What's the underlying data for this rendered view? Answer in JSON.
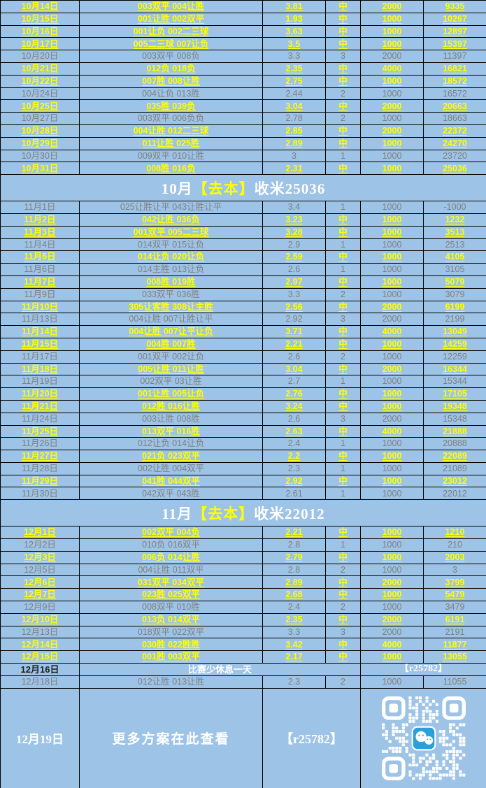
{
  "colors": {
    "background_blue": "#9DC3E6",
    "win_text": "#FFFF00",
    "loss_text": "#808080",
    "summary_text": "#FFFFFF",
    "grid_border": "#000000",
    "wechat_blue": "#2B9FD9"
  },
  "icons": {
    "qr": "wechat-qr-code",
    "qr_center": "wechat-icon"
  },
  "rows": [
    {
      "type": "bet",
      "win": true,
      "date": "10月14日",
      "pick": "003双平 004让胜",
      "odds": "3.81",
      "result": "中",
      "stake": "2000",
      "profit": "9335"
    },
    {
      "type": "bet",
      "win": true,
      "date": "10月15日",
      "pick": "001让胜 002双平",
      "odds": "1.93",
      "result": "中",
      "stake": "1000",
      "profit": "10267"
    },
    {
      "type": "bet",
      "win": true,
      "date": "10月16日",
      "pick": "001让负 002二三球",
      "odds": "3.63",
      "result": "中",
      "stake": "1000",
      "profit": "12897"
    },
    {
      "type": "bet",
      "win": true,
      "date": "10月17日",
      "pick": "005二三球 007让负",
      "odds": "3.5",
      "result": "中",
      "stake": "1000",
      "profit": "15397"
    },
    {
      "type": "bet",
      "win": false,
      "date": "10月20日",
      "pick": "003双平 008负",
      "odds": "3.3",
      "result": "3",
      "stake": "2000",
      "profit": "11397"
    },
    {
      "type": "bet",
      "win": true,
      "date": "10月21日",
      "pick": "012负 018负",
      "odds": "2.35",
      "result": "中",
      "stake": "4000",
      "profit": "16821"
    },
    {
      "type": "bet",
      "win": true,
      "date": "10月22日",
      "pick": "007胜 008让胜",
      "odds": "2.75",
      "result": "中",
      "stake": "1000",
      "profit": "18572"
    },
    {
      "type": "bet",
      "win": false,
      "date": "10月24日",
      "pick": "004让负 013胜",
      "odds": "2.44",
      "result": "2",
      "stake": "1000",
      "profit": "16572"
    },
    {
      "type": "bet",
      "win": true,
      "date": "10月25日",
      "pick": "035胜 039负",
      "odds": "3.04",
      "result": "中",
      "stake": "2000",
      "profit": "20663"
    },
    {
      "type": "bet",
      "win": false,
      "date": "10月27日",
      "pick": "003双平 006负负",
      "odds": "2.78",
      "result": "2",
      "stake": "1000",
      "profit": "18663"
    },
    {
      "type": "bet",
      "win": true,
      "date": "10月28日",
      "pick": "004让胜 012二三球",
      "odds": "2.85",
      "result": "中",
      "stake": "2000",
      "profit": "22372"
    },
    {
      "type": "bet",
      "win": true,
      "date": "10月29日",
      "pick": "011让胜 025胜",
      "odds": "2.89",
      "result": "中",
      "stake": "1000",
      "profit": "24270"
    },
    {
      "type": "bet",
      "win": false,
      "date": "10月30日",
      "pick": "009双平 010让胜",
      "odds": "3",
      "result": "1",
      "stake": "1000",
      "profit": "23720"
    },
    {
      "type": "bet",
      "win": true,
      "date": "10月31日",
      "pick": "008胜 016负",
      "odds": "2.31",
      "result": "中",
      "stake": "1000",
      "profit": "25036"
    },
    {
      "type": "summary",
      "pre": "10月",
      "mid": "【去本】",
      "post": "收米25036"
    },
    {
      "type": "bet",
      "win": false,
      "date": "11月1日",
      "pick": "025让胜让平 043让胜让平",
      "odds": "3.4",
      "result": "1",
      "stake": "1000",
      "profit": "-1000"
    },
    {
      "type": "bet",
      "win": true,
      "date": "11月2日",
      "pick": "042让胜 036负",
      "odds": "3.23",
      "result": "中",
      "stake": "1000",
      "profit": "1232"
    },
    {
      "type": "bet",
      "win": true,
      "date": "11月3日",
      "pick": "001双平 005二三球",
      "odds": "3.28",
      "result": "中",
      "stake": "1000",
      "profit": "3513"
    },
    {
      "type": "bet",
      "win": false,
      "date": "11月4日",
      "pick": "014双平 015让负",
      "odds": "2.9",
      "result": "1",
      "stake": "1000",
      "profit": "2513"
    },
    {
      "type": "bet",
      "win": true,
      "date": "11月5日",
      "pick": "014让负 020让负",
      "odds": "2.59",
      "result": "中",
      "stake": "1000",
      "profit": "4105"
    },
    {
      "type": "bet",
      "win": false,
      "date": "11月6日",
      "pick": "014主胜 013让负",
      "odds": "2.6",
      "result": "1",
      "stake": "1000",
      "profit": "3105"
    },
    {
      "type": "bet",
      "win": true,
      "date": "11月7日",
      "pick": "008胜 019胜",
      "odds": "2.97",
      "result": "中",
      "stake": "1000",
      "profit": "5079"
    },
    {
      "type": "bet",
      "win": false,
      "date": "11月9日",
      "pick": "033双平 036胜",
      "odds": "3.3",
      "result": "2",
      "stake": "1000",
      "profit": "3079"
    },
    {
      "type": "bet",
      "win": true,
      "date": "11月10日",
      "pick": "305让客胜 308让主胜",
      "odds": "2.56",
      "result": "中",
      "stake": "2000",
      "profit": "6199"
    },
    {
      "type": "bet",
      "win": false,
      "date": "11月13日",
      "pick": "004让胜 007让胜让平",
      "odds": "2.92",
      "result": "3",
      "stake": "2000",
      "profit": "2199"
    },
    {
      "type": "bet",
      "win": true,
      "date": "11月14日",
      "pick": "004让胜 007让平让负",
      "odds": "3.71",
      "result": "中",
      "stake": "4000",
      "profit": "13049"
    },
    {
      "type": "bet",
      "win": true,
      "date": "11月15日",
      "pick": "004胜 007胜",
      "odds": "2.21",
      "result": "中",
      "stake": "1000",
      "profit": "14259"
    },
    {
      "type": "bet",
      "win": false,
      "date": "11月17日",
      "pick": "001双平 002让负",
      "odds": "2.6",
      "result": "2",
      "stake": "1000",
      "profit": "12259"
    },
    {
      "type": "bet",
      "win": true,
      "date": "11月18日",
      "pick": "005让胜 011让胜",
      "odds": "3.04",
      "result": "中",
      "stake": "2000",
      "profit": "16344"
    },
    {
      "type": "bet",
      "win": false,
      "date": "11月19日",
      "pick": "002双平 03让胜",
      "odds": "2.7",
      "result": "1",
      "stake": "1000",
      "profit": "15344"
    },
    {
      "type": "bet",
      "win": true,
      "date": "11月20日",
      "pick": "001让胜 005让负",
      "odds": "2.76",
      "result": "中",
      "stake": "1000",
      "profit": "17105"
    },
    {
      "type": "bet",
      "win": true,
      "date": "11月21日",
      "pick": "012胜 016让胜",
      "odds": "3.24",
      "result": "中",
      "stake": "1000",
      "profit": "19348"
    },
    {
      "type": "bet",
      "win": false,
      "date": "11月24日",
      "pick": "003让胜 008胜",
      "odds": "2.6",
      "result": "3",
      "stake": "2000",
      "profit": "15348"
    },
    {
      "type": "bet",
      "win": true,
      "date": "11月25日",
      "pick": "013双平 016胜",
      "odds": "2.63",
      "result": "中",
      "stake": "4000",
      "profit": "21888"
    },
    {
      "type": "bet",
      "win": false,
      "date": "11月26日",
      "pick": "012让负 014让负",
      "odds": "2.4",
      "result": "1",
      "stake": "1000",
      "profit": "20888"
    },
    {
      "type": "bet",
      "win": true,
      "date": "11月27日",
      "pick": "021负 023双平",
      "odds": "2.2",
      "result": "中",
      "stake": "1000",
      "profit": "22089"
    },
    {
      "type": "bet",
      "win": false,
      "date": "11月28日",
      "pick": "002让胜 004双平",
      "odds": "2.3",
      "result": "1",
      "stake": "1000",
      "profit": "21089"
    },
    {
      "type": "bet",
      "win": true,
      "date": "11月29日",
      "pick": "041胜 044双平",
      "odds": "2.92",
      "result": "中",
      "stake": "1000",
      "profit": "23012"
    },
    {
      "type": "bet",
      "win": false,
      "date": "11月30日",
      "pick": "042双平 043胜",
      "odds": "2.61",
      "result": "1",
      "stake": "1000",
      "profit": "22012"
    },
    {
      "type": "summary",
      "pre": "11月",
      "mid": "【去本】",
      "post": "收米22012"
    },
    {
      "type": "bet",
      "win": true,
      "date": "12月1日",
      "pick": "002双平 004负",
      "odds": "2.21",
      "result": "中",
      "stake": "1000",
      "profit": "1210"
    },
    {
      "type": "bet",
      "win": false,
      "date": "12月2日",
      "pick": "010负 016双平",
      "odds": "2.8",
      "result": "1",
      "stake": "1000",
      "profit": "210"
    },
    {
      "type": "bet",
      "win": true,
      "date": "12月3日",
      "pick": "006负 014让胜",
      "odds": "2.79",
      "result": "中",
      "stake": "1000",
      "profit": "2003"
    },
    {
      "type": "bet",
      "win": false,
      "date": "12月5日",
      "pick": "004让胜 011双平",
      "odds": "2.8",
      "result": "2",
      "stake": "1000",
      "profit": "3"
    },
    {
      "type": "bet",
      "win": true,
      "date": "12月6日",
      "pick": "031双平 034双平",
      "odds": "2.89",
      "result": "中",
      "stake": "2000",
      "profit": "3799"
    },
    {
      "type": "bet",
      "win": true,
      "date": "12月7日",
      "pick": "023胜 025双平",
      "odds": "2.68",
      "result": "中",
      "stake": "1000",
      "profit": "5479"
    },
    {
      "type": "bet",
      "win": false,
      "date": "12月9日",
      "pick": "008双平 010胜",
      "odds": "2.4",
      "result": "2",
      "stake": "1000",
      "profit": "3479"
    },
    {
      "type": "bet",
      "win": true,
      "date": "12月10日",
      "pick": "013负 014双平",
      "odds": "2.35",
      "result": "中",
      "stake": "2000",
      "profit": "6191"
    },
    {
      "type": "bet",
      "win": false,
      "date": "12月13日",
      "pick": "018双平 022双平",
      "odds": "3.3",
      "result": "3",
      "stake": "2000",
      "profit": "2191"
    },
    {
      "type": "bet",
      "win": true,
      "date": "12月14日",
      "pick": "030胜 022胜胜",
      "odds": "3.42",
      "result": "中",
      "stake": "4000",
      "profit": "11877"
    },
    {
      "type": "bet",
      "win": true,
      "date": "12月15日",
      "pick": "001胜 003双平",
      "odds": "2.17",
      "result": "中",
      "stake": "1000",
      "profit": "13055"
    },
    {
      "type": "note",
      "date": "12月16日",
      "note": "比赛少休息一天",
      "code": "【r25782】"
    },
    {
      "type": "bet",
      "win": false,
      "date": "12月18日",
      "pick": "012让胜 013让胜",
      "odds": "2.3",
      "result": "2",
      "stake": "1000",
      "profit": "11055"
    },
    {
      "type": "footer",
      "date": "12月19日",
      "text": "更多方案在此查看",
      "code": "【r25782】"
    }
  ]
}
